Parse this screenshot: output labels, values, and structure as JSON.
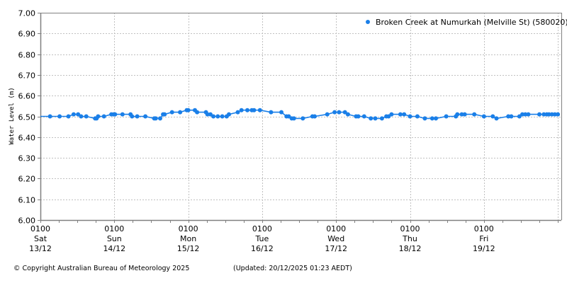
{
  "chart_data": {
    "type": "line",
    "title": "",
    "series": [
      {
        "name": "Broken Creek at Numurkah (Melville St) (580020)",
        "color": "#1a7fe8",
        "x_days": [
          0.13,
          0.26,
          0.38,
          0.45,
          0.51,
          0.55,
          0.62,
          0.74,
          0.76,
          0.78,
          0.86,
          0.96,
          0.99,
          1.01,
          1.11,
          1.22,
          1.24,
          1.31,
          1.42,
          1.54,
          1.56,
          1.62,
          1.66,
          1.68,
          1.78,
          1.89,
          1.98,
          2.0,
          2.09,
          2.12,
          2.24,
          2.26,
          2.3,
          2.34,
          2.4,
          2.46,
          2.52,
          2.55,
          2.67,
          2.72,
          2.8,
          2.86,
          2.89,
          2.97,
          3.12,
          3.26,
          3.33,
          3.36,
          3.4,
          3.43,
          3.55,
          3.68,
          3.71,
          3.88,
          3.98,
          4.04,
          4.12,
          4.16,
          4.27,
          4.3,
          4.38,
          4.47,
          4.53,
          4.62,
          4.68,
          4.71,
          4.75,
          4.87,
          4.92,
          5.0,
          5.1,
          5.2,
          5.3,
          5.35,
          5.49,
          5.62,
          5.64,
          5.7,
          5.74,
          5.87,
          6.0,
          6.12,
          6.17,
          6.33,
          6.37,
          6.48,
          6.52,
          6.56,
          6.6,
          6.75,
          6.81,
          6.85,
          6.88,
          6.92,
          6.96,
          7.0
        ],
        "values": [
          6.5,
          6.5,
          6.5,
          6.51,
          6.51,
          6.5,
          6.5,
          6.49,
          6.49,
          6.5,
          6.5,
          6.51,
          6.51,
          6.51,
          6.51,
          6.51,
          6.5,
          6.5,
          6.5,
          6.49,
          6.49,
          6.49,
          6.51,
          6.51,
          6.52,
          6.52,
          6.53,
          6.53,
          6.53,
          6.52,
          6.52,
          6.51,
          6.51,
          6.5,
          6.5,
          6.5,
          6.5,
          6.51,
          6.52,
          6.53,
          6.53,
          6.53,
          6.53,
          6.53,
          6.52,
          6.52,
          6.5,
          6.5,
          6.49,
          6.49,
          6.49,
          6.5,
          6.5,
          6.51,
          6.52,
          6.52,
          6.52,
          6.51,
          6.5,
          6.5,
          6.5,
          6.49,
          6.49,
          6.49,
          6.5,
          6.5,
          6.51,
          6.51,
          6.51,
          6.5,
          6.5,
          6.49,
          6.49,
          6.49,
          6.5,
          6.5,
          6.51,
          6.51,
          6.51,
          6.51,
          6.5,
          6.5,
          6.49,
          6.5,
          6.5,
          6.5,
          6.51,
          6.51,
          6.51,
          6.51,
          6.51,
          6.51,
          6.51,
          6.51,
          6.51,
          6.51
        ]
      }
    ],
    "xlabel": "",
    "ylabel": "Water Level (m)",
    "ylim": [
      6.0,
      7.0
    ],
    "yticks": [
      "6.00",
      "6.10",
      "6.20",
      "6.30",
      "6.40",
      "6.50",
      "6.60",
      "6.70",
      "6.80",
      "6.90",
      "7.00"
    ],
    "xticks": [
      {
        "time": "0100",
        "day": "Sat",
        "date": "13/12"
      },
      {
        "time": "0100",
        "day": "Sun",
        "date": "14/12"
      },
      {
        "time": "0100",
        "day": "Mon",
        "date": "15/12"
      },
      {
        "time": "0100",
        "day": "Tue",
        "date": "16/12"
      },
      {
        "time": "0100",
        "day": "Wed",
        "date": "17/12"
      },
      {
        "time": "0100",
        "day": "Thu",
        "date": "18/12"
      },
      {
        "time": "0100",
        "day": "Fri",
        "date": "19/12"
      }
    ],
    "grid": true,
    "legend_position": "top-right"
  },
  "footer": {
    "copyright": "© Copyright Australian Bureau of Meteorology 2025",
    "updated": "(Updated: 20/12/2025 01:23 AEDT)"
  }
}
